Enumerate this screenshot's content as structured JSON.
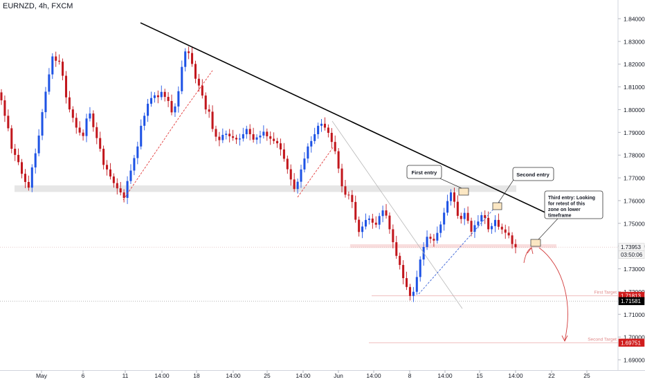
{
  "header": {
    "symbol_label": "EURNZD, 4h, FXCM"
  },
  "chart_data": {
    "type": "candlestick",
    "symbol": "EURNZD",
    "timeframe": "4h",
    "source": "FXCM",
    "ylim": [
      1.6852,
      1.8487
    ],
    "y_ticks": [
      "1.84000",
      "1.83000",
      "1.82000",
      "1.81000",
      "1.80000",
      "1.79000",
      "1.78000",
      "1.77000",
      "1.76000",
      "1.75000",
      "1.74000",
      "1.73000",
      "1.72000",
      "1.71000",
      "1.70000",
      "1.69000"
    ],
    "x_ticks": [
      "May",
      "6",
      "11",
      "14:00",
      "18",
      "14:00",
      "25",
      "14:00",
      "Jun",
      "14:00",
      "8",
      "14:00",
      "15",
      "14:00",
      "22",
      "25"
    ],
    "colors": {
      "bullish": "#1e53e5",
      "bearish": "#c2171d",
      "trendline": "#000000",
      "zone": "#e6e6e6",
      "zone_red": "#f9dede",
      "target_red": "#d01d1d",
      "price_tag": "#f5f5f5",
      "dark_tag": "#000000"
    },
    "closes": [
      1.8041,
      1.7973,
      1.7918,
      1.7828,
      1.7801,
      1.7769,
      1.7718,
      1.7682,
      1.7657,
      1.7746,
      1.7808,
      1.7886,
      1.7989,
      1.8079,
      1.8155,
      1.8234,
      1.8215,
      1.8211,
      1.8149,
      1.8054,
      1.8001,
      1.7964,
      1.7921,
      1.7899,
      1.7884,
      1.7961,
      1.7983,
      1.7923,
      1.7875,
      1.7828,
      1.7757,
      1.7737,
      1.7706,
      1.7677,
      1.7654,
      1.7636,
      1.7612,
      1.7686,
      1.7732,
      1.7787,
      1.7838,
      1.7929,
      1.7973,
      1.8026,
      1.8051,
      1.8063,
      1.8055,
      1.8078,
      1.8056,
      1.8038,
      1.7988,
      1.8014,
      1.8081,
      1.8188,
      1.8256,
      1.8249,
      1.8201,
      1.8136,
      1.8106,
      1.8062,
      1.8001,
      1.7991,
      1.7915,
      1.7881,
      1.7866,
      1.7889,
      1.7894,
      1.7883,
      1.7876,
      1.7869,
      1.7873,
      1.7892,
      1.7915,
      1.7892,
      1.7868,
      1.7878,
      1.7886,
      1.7903,
      1.7883,
      1.7872,
      1.7862,
      1.7852,
      1.7825,
      1.7784,
      1.7738,
      1.7693,
      1.7651,
      1.7683,
      1.7737,
      1.7785,
      1.7838,
      1.7862,
      1.7892,
      1.7929,
      1.7938,
      1.7921,
      1.7898,
      1.7858,
      1.7817,
      1.7741,
      1.7663,
      1.7626,
      1.7625,
      1.7594,
      1.7516,
      1.7462,
      1.7486,
      1.7515,
      1.7521,
      1.7503,
      1.7494,
      1.7532,
      1.7557,
      1.7534,
      1.7474,
      1.7417,
      1.7357,
      1.7317,
      1.7259,
      1.722,
      1.7181,
      1.7199,
      1.7264,
      1.7341,
      1.7396,
      1.7441,
      1.7432,
      1.7424,
      1.7458,
      1.7495,
      1.7547,
      1.7598,
      1.7636,
      1.7595,
      1.7533,
      1.7519,
      1.7546,
      1.7511,
      1.7463,
      1.7492,
      1.7508,
      1.7536,
      1.7524,
      1.7474,
      1.7488,
      1.7515,
      1.7485,
      1.7473,
      1.7459,
      1.7447,
      1.7409,
      1.7395
    ]
  },
  "trendline": {
    "x": [
      "",
      ""
    ],
    "y": [
      1.8382,
      1.7526
    ]
  },
  "annotations": {
    "first_entry": "First entry",
    "second_entry": "Second entry",
    "third_entry": [
      "Third entry: Looking",
      "for retest of this",
      "zone on lower",
      "timeframe"
    ],
    "first_target_label": "First Target",
    "second_target_label": "Second Target"
  },
  "price_tags": {
    "current_price": "1.73953",
    "countdown": "03:50:06",
    "first_target": "1.71813",
    "black_level": "1.71581",
    "second_target": "1.69751"
  },
  "levels": {
    "current": 1.73953,
    "first_target": 1.71813,
    "black_level": 1.71581,
    "second_target": 1.69751,
    "support_zone": [
      1.7638,
      1.7667
    ],
    "resistance_zone": [
      1.7392,
      1.7408
    ]
  }
}
